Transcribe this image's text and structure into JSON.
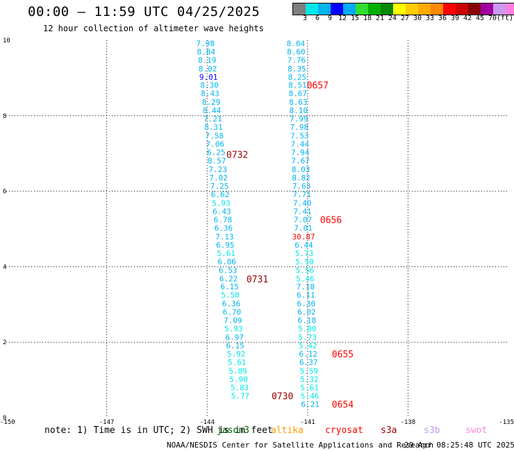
{
  "header": {
    "title": "00:00 – 11:59 UTC 04/25/2025",
    "subtitle": "12 hour collection of altimeter wave heights"
  },
  "legend": {
    "colors": [
      "#7f7f7f",
      "#00e8e8",
      "#00b4f0",
      "#0000ff",
      "#00aaff",
      "#33dd33",
      "#00b000",
      "#008800",
      "#ffff00",
      "#ffcc00",
      "#ffaa00",
      "#ff8800",
      "#ff0000",
      "#cc0000",
      "#880000",
      "#a000a0",
      "#cc99ee",
      "#ff80e0",
      "#000000"
    ],
    "ticks": [
      "3",
      "6",
      "9",
      "12",
      "15",
      "18",
      "21",
      "24",
      "27",
      "30",
      "33",
      "36",
      "39",
      "42",
      "45",
      "70",
      "(ft)"
    ]
  },
  "note": "note: 1) Time is in UTC; 2) SWH is in feet",
  "satellites": [
    {
      "name": "jason3",
      "color": "#006600"
    },
    {
      "name": "altika",
      "color": "#ff9900"
    },
    {
      "name": "cryosat",
      "color": "#ff0000"
    },
    {
      "name": "s3a",
      "color": "#990000"
    },
    {
      "name": "s3b",
      "color": "#bb99ee"
    },
    {
      "name": "swot",
      "color": "#ff88dd"
    }
  ],
  "footer": {
    "left": "NOAA/NESDIS Center for Satellite Applications and Research",
    "right": "29 Apr 08:25:48 UTC 2025"
  },
  "chart_data": {
    "type": "scatter",
    "title": "00:00 – 11:59 UTC 04/25/2025",
    "xlim": [
      -150,
      -135
    ],
    "ylim": [
      0,
      10
    ],
    "xticks": [
      "-150",
      "-147",
      "-144",
      "-141",
      "-138",
      "-135"
    ],
    "yticks": [
      "0",
      "2",
      "4",
      "6",
      "8",
      "10"
    ],
    "grid": true,
    "series": [
      {
        "name": "s3a",
        "color": "#990000",
        "points": [
          {
            "x": -144.05,
            "y": 9.92,
            "v": "7.98",
            "c": "#00b4f0"
          },
          {
            "x": -144.03,
            "y": 9.7,
            "v": "8.84",
            "c": "#00b4f0"
          },
          {
            "x": -144.0,
            "y": 9.48,
            "v": "8.19",
            "c": "#00b4f0"
          },
          {
            "x": -143.98,
            "y": 9.25,
            "v": "8.02",
            "c": "#00b4f0"
          },
          {
            "x": -143.96,
            "y": 9.03,
            "v": "9.01",
            "c": "#0000ff"
          },
          {
            "x": -143.93,
            "y": 8.81,
            "v": "8.30",
            "c": "#00b4f0"
          },
          {
            "x": -143.91,
            "y": 8.59,
            "v": "8.43",
            "c": "#00b4f0"
          },
          {
            "x": -143.88,
            "y": 8.36,
            "v": "8.29",
            "c": "#00b4f0"
          },
          {
            "x": -143.86,
            "y": 8.14,
            "v": "8.44",
            "c": "#00b4f0"
          },
          {
            "x": -143.83,
            "y": 7.92,
            "v": "7.21",
            "c": "#00b4f0"
          },
          {
            "x": -143.81,
            "y": 7.7,
            "v": "8.31",
            "c": "#00b4f0"
          },
          {
            "x": -143.78,
            "y": 7.47,
            "v": "7.58",
            "c": "#00b4f0"
          },
          {
            "x": -143.76,
            "y": 7.25,
            "v": "7.06",
            "c": "#00b4f0"
          },
          {
            "x": -143.73,
            "y": 7.03,
            "v": "6.25",
            "c": "#00b4f0"
          },
          {
            "x": -143.71,
            "y": 6.81,
            "v": "8.57",
            "c": "#00b4f0"
          },
          {
            "x": -143.68,
            "y": 6.58,
            "v": "7.23",
            "c": "#00b4f0"
          },
          {
            "x": -143.66,
            "y": 6.36,
            "v": "7.02",
            "c": "#00b4f0"
          },
          {
            "x": -143.63,
            "y": 6.14,
            "v": "7.25",
            "c": "#00b4f0"
          },
          {
            "x": -143.61,
            "y": 5.92,
            "v": "6.62",
            "c": "#00b4f0"
          },
          {
            "x": -143.58,
            "y": 5.69,
            "v": "5.93",
            "c": "#00e8e8"
          },
          {
            "x": -143.56,
            "y": 5.47,
            "v": "6.43",
            "c": "#00b4f0"
          },
          {
            "x": -143.53,
            "y": 5.25,
            "v": "6.78",
            "c": "#00b4f0"
          },
          {
            "x": -143.51,
            "y": 5.03,
            "v": "6.36",
            "c": "#00b4f0"
          },
          {
            "x": -143.48,
            "y": 4.8,
            "v": "7.13",
            "c": "#00b4f0"
          },
          {
            "x": -143.46,
            "y": 4.58,
            "v": "6.95",
            "c": "#00b4f0"
          },
          {
            "x": -143.43,
            "y": 4.36,
            "v": "5.61",
            "c": "#00e8e8"
          },
          {
            "x": -143.41,
            "y": 4.14,
            "v": "6.06",
            "c": "#00b4f0"
          },
          {
            "x": -143.38,
            "y": 3.91,
            "v": "6.53",
            "c": "#00b4f0"
          },
          {
            "x": -143.36,
            "y": 3.69,
            "v": "6.22",
            "c": "#00b4f0"
          },
          {
            "x": -143.33,
            "y": 3.47,
            "v": "6.15",
            "c": "#00b4f0"
          },
          {
            "x": -143.31,
            "y": 3.25,
            "v": "5.50",
            "c": "#00e8e8"
          },
          {
            "x": -143.28,
            "y": 3.02,
            "v": "6.36",
            "c": "#00b4f0"
          },
          {
            "x": -143.26,
            "y": 2.8,
            "v": "6.70",
            "c": "#00b4f0"
          },
          {
            "x": -143.23,
            "y": 2.58,
            "v": "7.09",
            "c": "#00b4f0"
          },
          {
            "x": -143.21,
            "y": 2.36,
            "v": "5.93",
            "c": "#00e8e8"
          },
          {
            "x": -143.18,
            "y": 2.13,
            "v": "6.97",
            "c": "#00b4f0"
          },
          {
            "x": -143.16,
            "y": 1.91,
            "v": "6.15",
            "c": "#00b4f0"
          },
          {
            "x": -143.13,
            "y": 1.69,
            "v": "5.92",
            "c": "#00e8e8"
          },
          {
            "x": -143.11,
            "y": 1.47,
            "v": "5.61",
            "c": "#00e8e8"
          },
          {
            "x": -143.08,
            "y": 1.24,
            "v": "5.89",
            "c": "#00e8e8"
          },
          {
            "x": -143.06,
            "y": 1.02,
            "v": "5.90",
            "c": "#00e8e8"
          },
          {
            "x": -143.03,
            "y": 0.8,
            "v": "5.83",
            "c": "#00e8e8"
          },
          {
            "x": -143.01,
            "y": 0.58,
            "v": "5.77",
            "c": "#00e8e8"
          }
        ],
        "times": [
          {
            "x": -143.1,
            "y": 6.98,
            "t": "0732"
          },
          {
            "x": -142.5,
            "y": 3.68,
            "t": "0731"
          },
          {
            "x": -141.75,
            "y": 0.58,
            "t": "0730"
          }
        ]
      },
      {
        "name": "cryosat",
        "color": "#ff0000",
        "points": [
          {
            "x": -141.35,
            "y": 9.92,
            "v": "8.04",
            "c": "#00b4f0"
          },
          {
            "x": -141.34,
            "y": 9.7,
            "v": "8.60",
            "c": "#00b4f0"
          },
          {
            "x": -141.33,
            "y": 9.48,
            "v": "7.76",
            "c": "#00b4f0"
          },
          {
            "x": -141.32,
            "y": 9.25,
            "v": "8.35",
            "c": "#00b4f0"
          },
          {
            "x": -141.31,
            "y": 9.03,
            "v": "8.25",
            "c": "#00b4f0"
          },
          {
            "x": -141.3,
            "y": 8.81,
            "v": "8.51",
            "c": "#00b4f0"
          },
          {
            "x": -141.29,
            "y": 8.59,
            "v": "8.67",
            "c": "#00b4f0"
          },
          {
            "x": -141.28,
            "y": 8.36,
            "v": "8.63",
            "c": "#00b4f0"
          },
          {
            "x": -141.27,
            "y": 8.14,
            "v": "8.10",
            "c": "#00b4f0"
          },
          {
            "x": -141.26,
            "y": 7.92,
            "v": "7.99",
            "c": "#00b4f0"
          },
          {
            "x": -141.25,
            "y": 7.7,
            "v": "7.98",
            "c": "#00b4f0"
          },
          {
            "x": -141.24,
            "y": 7.47,
            "v": "7.53",
            "c": "#00b4f0"
          },
          {
            "x": -141.23,
            "y": 7.25,
            "v": "7.44",
            "c": "#00b4f0"
          },
          {
            "x": -141.22,
            "y": 7.03,
            "v": "7.94",
            "c": "#00b4f0"
          },
          {
            "x": -141.21,
            "y": 6.81,
            "v": "7.67",
            "c": "#00b4f0"
          },
          {
            "x": -141.2,
            "y": 6.58,
            "v": "8.03",
            "c": "#00b4f0"
          },
          {
            "x": -141.19,
            "y": 6.36,
            "v": "8.82",
            "c": "#00b4f0"
          },
          {
            "x": -141.18,
            "y": 6.14,
            "v": "7.63",
            "c": "#00b4f0"
          },
          {
            "x": -141.17,
            "y": 5.92,
            "v": "7.71",
            "c": "#00b4f0"
          },
          {
            "x": -141.16,
            "y": 5.69,
            "v": "7.40",
            "c": "#00b4f0"
          },
          {
            "x": -141.15,
            "y": 5.47,
            "v": "7.41",
            "c": "#00b4f0"
          },
          {
            "x": -141.14,
            "y": 5.25,
            "v": "7.07",
            "c": "#00b4f0"
          },
          {
            "x": -141.13,
            "y": 5.03,
            "v": "7.01",
            "c": "#00b4f0"
          },
          {
            "x": -141.12,
            "y": 4.8,
            "v": "30.87",
            "c": "#ff0000"
          },
          {
            "x": -141.11,
            "y": 4.58,
            "v": "6.44",
            "c": "#00b4f0"
          },
          {
            "x": -141.1,
            "y": 4.36,
            "v": "5.73",
            "c": "#00e8e8"
          },
          {
            "x": -141.09,
            "y": 4.14,
            "v": "5.50",
            "c": "#00e8e8"
          },
          {
            "x": -141.08,
            "y": 3.91,
            "v": "5.56",
            "c": "#00e8e8"
          },
          {
            "x": -141.07,
            "y": 3.69,
            "v": "5.46",
            "c": "#00e8e8"
          },
          {
            "x": -141.06,
            "y": 3.47,
            "v": "7.18",
            "c": "#00b4f0"
          },
          {
            "x": -141.05,
            "y": 3.25,
            "v": "6.11",
            "c": "#00b4f0"
          },
          {
            "x": -141.04,
            "y": 3.02,
            "v": "6.30",
            "c": "#00b4f0"
          },
          {
            "x": -141.03,
            "y": 2.8,
            "v": "6.02",
            "c": "#00b4f0"
          },
          {
            "x": -141.02,
            "y": 2.58,
            "v": "6.18",
            "c": "#00b4f0"
          },
          {
            "x": -141.01,
            "y": 2.36,
            "v": "5.80",
            "c": "#00e8e8"
          },
          {
            "x": -141.0,
            "y": 2.13,
            "v": "5.73",
            "c": "#00e8e8"
          },
          {
            "x": -140.99,
            "y": 1.91,
            "v": "5.42",
            "c": "#00e8e8"
          },
          {
            "x": -140.98,
            "y": 1.69,
            "v": "6.12",
            "c": "#00b4f0"
          },
          {
            "x": -140.97,
            "y": 1.47,
            "v": "6.37",
            "c": "#00b4f0"
          },
          {
            "x": -140.96,
            "y": 1.24,
            "v": "5.59",
            "c": "#00e8e8"
          },
          {
            "x": -140.95,
            "y": 1.02,
            "v": "5.32",
            "c": "#00e8e8"
          },
          {
            "x": -140.94,
            "y": 0.8,
            "v": "5.61",
            "c": "#00e8e8"
          },
          {
            "x": -140.93,
            "y": 0.58,
            "v": "5.46",
            "c": "#00e8e8"
          },
          {
            "x": -140.92,
            "y": 0.36,
            "v": "6.21",
            "c": "#00b4f0"
          }
        ],
        "times": [
          {
            "x": -140.7,
            "y": 8.81,
            "t": "0657"
          },
          {
            "x": -140.3,
            "y": 5.25,
            "t": "0656"
          },
          {
            "x": -139.95,
            "y": 1.69,
            "t": "0655"
          },
          {
            "x": -139.95,
            "y": 0.36,
            "t": "0654"
          }
        ]
      }
    ]
  }
}
